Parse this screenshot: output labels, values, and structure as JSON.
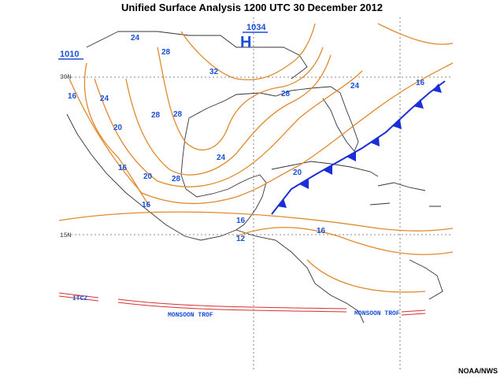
{
  "title": "Unified Surface Analysis 1200 UTC 30 December 2012",
  "credit": "NOAA/NWS",
  "latitude_labels": [
    "30N",
    "15N"
  ],
  "pressure_centers": [
    {
      "value": "1034",
      "symbol": "H"
    },
    {
      "value": "1010"
    }
  ],
  "isobar_labels": [
    "24",
    "28",
    "32",
    "16",
    "24",
    "28",
    "28",
    "20",
    "28",
    "24",
    "16",
    "24",
    "16",
    "20",
    "28",
    "20",
    "16",
    "16",
    "12",
    "16"
  ],
  "features": [
    "ITCZ",
    "MONSOON TROF",
    "MONSOON TROF"
  ]
}
